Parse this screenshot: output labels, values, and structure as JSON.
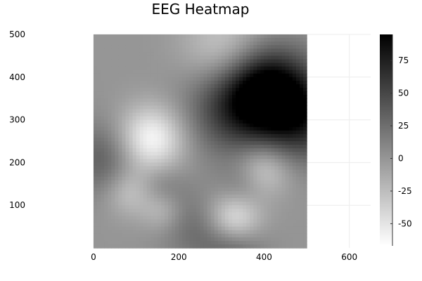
{
  "chart_data": {
    "type": "heatmap",
    "title": "EEG Heatmap",
    "xlabel": "",
    "ylabel": "",
    "xlim": [
      0,
      650
    ],
    "ylim": [
      0,
      500
    ],
    "image_extent": {
      "x": [
        0,
        500
      ],
      "y": [
        0,
        500
      ]
    },
    "xticks": [
      0,
      200,
      400,
      600
    ],
    "yticks": [
      100,
      200,
      300,
      400,
      500
    ],
    "colorbar": {
      "ticks": [
        -50,
        -25,
        0,
        25,
        50,
        75
      ],
      "range": [
        -67,
        95
      ],
      "colormap": "grayscale",
      "low_color": "#ffffff",
      "high_color": "#000000"
    },
    "grid": true,
    "hotspots": [
      {
        "x": 410,
        "y": 370,
        "value": 95,
        "radius": 70
      },
      {
        "x": 330,
        "y": 330,
        "value": 55,
        "radius": 80
      },
      {
        "x": 490,
        "y": 300,
        "value": 60,
        "radius": 70
      },
      {
        "x": 20,
        "y": 210,
        "value": 35,
        "radius": 60
      },
      {
        "x": 240,
        "y": 50,
        "value": 25,
        "radius": 60
      },
      {
        "x": 330,
        "y": 10,
        "value": 40,
        "radius": 50
      },
      {
        "x": 160,
        "y": 135,
        "value": 20,
        "radius": 40
      },
      {
        "x": 350,
        "y": 140,
        "value": 20,
        "radius": 40
      },
      {
        "x": 135,
        "y": 255,
        "value": -65,
        "radius": 55
      },
      {
        "x": 330,
        "y": 65,
        "value": -67,
        "radius": 45
      },
      {
        "x": 400,
        "y": 185,
        "value": -40,
        "radius": 45
      },
      {
        "x": 310,
        "y": 460,
        "value": -40,
        "radius": 70
      },
      {
        "x": 85,
        "y": 130,
        "value": -30,
        "radius": 40
      },
      {
        "x": 160,
        "y": 90,
        "value": -30,
        "radius": 35
      }
    ],
    "base_value": 0
  }
}
